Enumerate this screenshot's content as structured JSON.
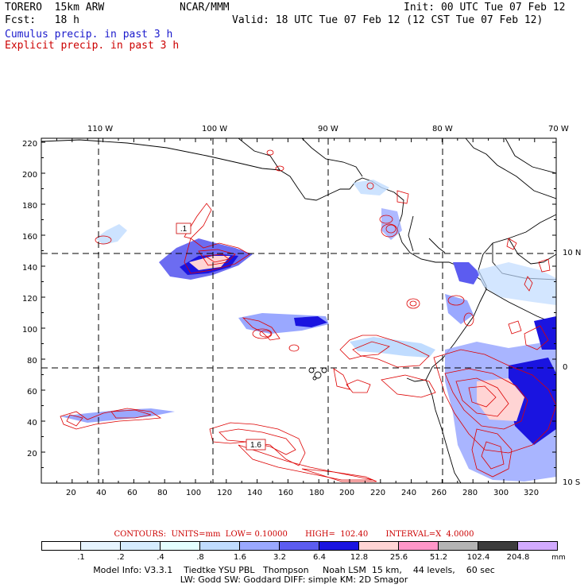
{
  "header": {
    "model": "TORERO  15km ARW",
    "org": "NCAR/MMM",
    "init": "Init: 00 UTC Tue 07 Feb 12",
    "fcst": "Fcst:   18 h",
    "valid": "Valid: 18 UTC Tue 07 Feb 12 (12 CST Tue 07 Feb 12)",
    "field1": "Cumulus precip. in past 3 h",
    "field2": "Explicit precip. in past 3 h"
  },
  "colors": {
    "field1": "#1a1acc",
    "field2": "#cc0000"
  },
  "axes": {
    "top_lon": [
      "110 W",
      "100 W",
      "90 W",
      "80 W",
      "70 W"
    ],
    "right_lat": [
      "10 N",
      "0",
      "10 S"
    ],
    "left_y": [
      "220",
      "200",
      "180",
      "160",
      "140",
      "120",
      "100",
      "80",
      "60",
      "40",
      "20"
    ],
    "bottom_x": [
      "20",
      "40",
      "60",
      "80",
      "100",
      "120",
      "140",
      "160",
      "180",
      "200",
      "220",
      "240",
      "260",
      "280",
      "300",
      "320"
    ]
  },
  "labels": {
    "box1": ".1",
    "box2": "1.6"
  },
  "colorbar": {
    "values": [
      ".1",
      ".2",
      ".4",
      ".8",
      "1.6",
      "3.2",
      "6.4",
      "12.8",
      "25.6",
      "51.2",
      "102.4",
      "204.8"
    ],
    "units": "mm",
    "colors": [
      "#ffffff",
      "#e6f4ff",
      "#d6ecff",
      "#e4ffff",
      "#c0dcff",
      "#9aa8ff",
      "#5c5cf0",
      "#1a14e0",
      "#ffd4d4",
      "#ff96c8",
      "#b4b4b4",
      "#3c3c3c",
      "#d2aaff"
    ]
  },
  "contours_line": "CONTOURS:  UNITS=mm  LOW= 0.10000       HIGH=  102.40       INTERVAL=X  4.0000",
  "footer": {
    "line1": "Model Info: V3.3.1    Tiedtke YSU PBL   Thompson     Noah LSM  15 km,    44 levels,    60 sec",
    "line2": "LW: Godd SW: Goddard DIFF: simple KM: 2D Smagor"
  }
}
